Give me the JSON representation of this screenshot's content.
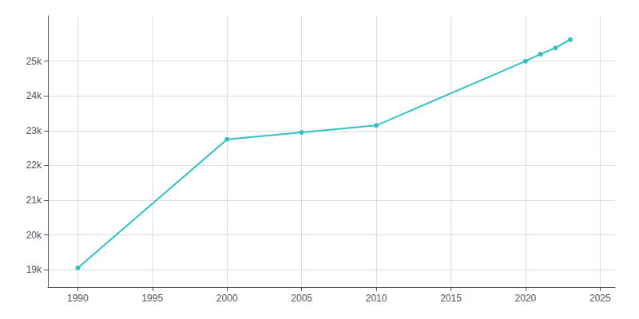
{
  "chart_data": {
    "type": "line",
    "x": [
      1990,
      2000,
      2005,
      2010,
      2020,
      2021,
      2022,
      2023
    ],
    "values": [
      19050,
      22750,
      22950,
      23150,
      25000,
      25200,
      25380,
      25620
    ],
    "color": "#2EC4C4",
    "marker": "circle",
    "xlim": [
      1988,
      2026
    ],
    "xticks": [
      1990,
      1995,
      2000,
      2005,
      2010,
      2015,
      2020,
      2025
    ],
    "ylim": [
      18500,
      26300
    ],
    "yticks": [
      {
        "value": 19000,
        "label": "19k"
      },
      {
        "value": 20000,
        "label": "20k"
      },
      {
        "value": 21000,
        "label": "21k"
      },
      {
        "value": 22000,
        "label": "22k"
      },
      {
        "value": 23000,
        "label": "23k"
      },
      {
        "value": 24000,
        "label": "24k"
      },
      {
        "value": 25000,
        "label": "25k"
      }
    ],
    "grid": true
  }
}
